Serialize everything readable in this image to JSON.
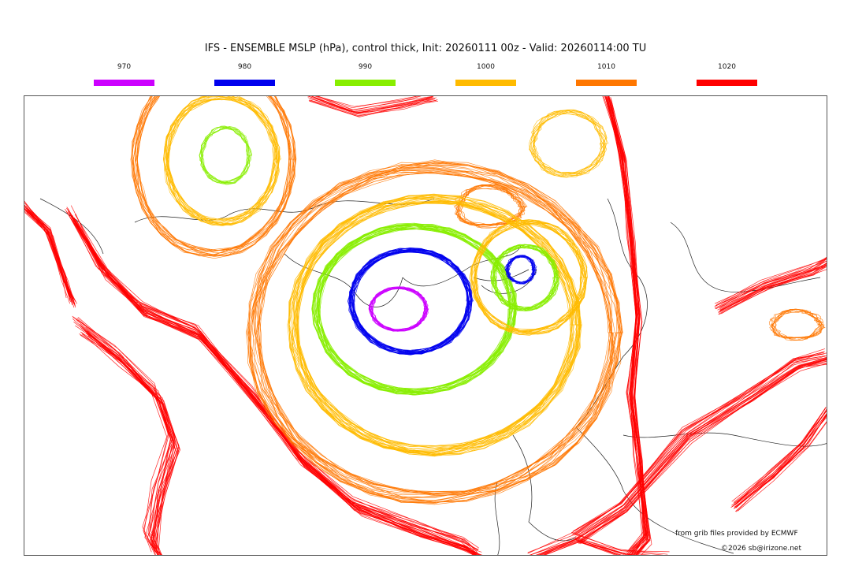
{
  "title": "IFS - ENSEMBLE MSLP (hPa), control thick, Init: 20260111 00z - Valid: 20260114:00 TU",
  "legend": [
    {
      "label": "970",
      "color": "#cc00ff"
    },
    {
      "label": "980",
      "color": "#0000ee"
    },
    {
      "label": "990",
      "color": "#88ee00"
    },
    {
      "label": "1000",
      "color": "#ffbb00"
    },
    {
      "label": "1010",
      "color": "#ff7700"
    },
    {
      "label": "1020",
      "color": "#ff0000"
    }
  ],
  "credits": {
    "source": "from grib files provided by ECMWF",
    "copyright": "©2026 sb@irizone.net"
  }
}
